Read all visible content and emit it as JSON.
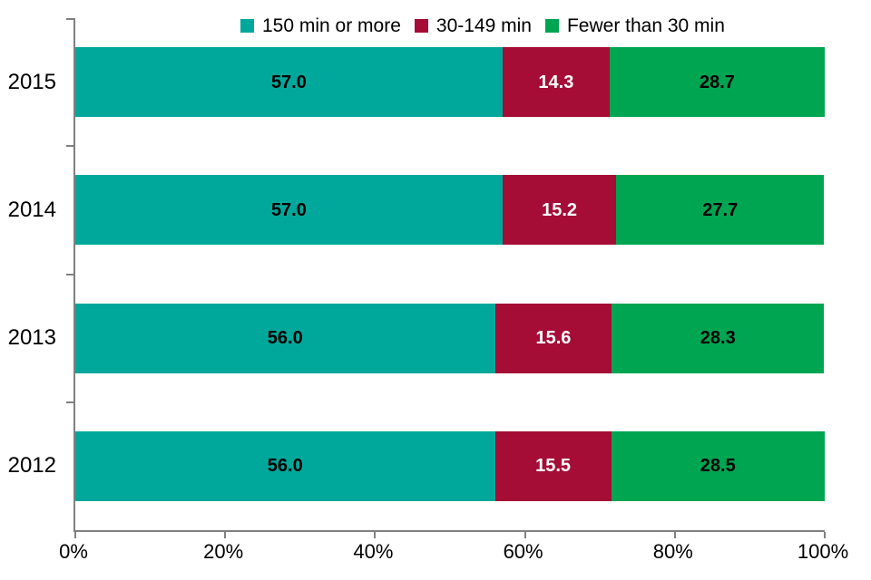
{
  "chart_data": {
    "type": "bar",
    "orientation": "horizontal",
    "stacked": true,
    "title": "",
    "xlabel": "",
    "ylabel": "",
    "categories": [
      "2015",
      "2014",
      "2013",
      "2012"
    ],
    "series": [
      {
        "name": "150 min or more",
        "color": "#00A89B",
        "label_color": "#000000",
        "values": [
          57.0,
          57.0,
          56.0,
          56.0
        ]
      },
      {
        "name": "30-149 min",
        "color": "#A50D36",
        "label_color": "#FFFFFF",
        "values": [
          14.3,
          15.2,
          15.6,
          15.5
        ]
      },
      {
        "name": "Fewer than 30 min",
        "color": "#00A551",
        "label_color": "#000000",
        "values": [
          28.7,
          27.7,
          28.3,
          28.5
        ]
      }
    ],
    "value_label_decimals": 1,
    "x_axis": {
      "min": 0,
      "max": 100,
      "tick_labels": [
        "0%",
        "20%",
        "40%",
        "60%",
        "80%",
        "100%"
      ]
    },
    "legend_position": "top",
    "grid": false
  },
  "colors": {
    "axis": "#808080",
    "text": "#000000",
    "background": "#FFFFFF"
  }
}
